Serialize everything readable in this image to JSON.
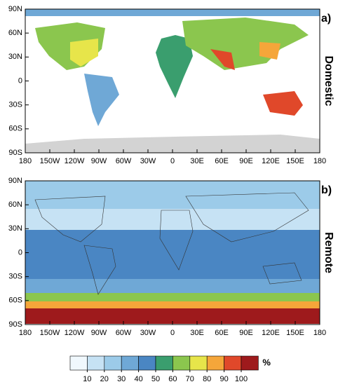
{
  "panels": [
    {
      "label": "a)",
      "title": "Domestic"
    },
    {
      "label": "b)",
      "title": "Remote"
    }
  ],
  "map": {
    "xlim": [
      -180,
      180
    ],
    "ylim": [
      -90,
      90
    ],
    "xticks": [
      {
        "value": -180,
        "label": "180"
      },
      {
        "value": -150,
        "label": "150W"
      },
      {
        "value": -120,
        "label": "120W"
      },
      {
        "value": -90,
        "label": "90W"
      },
      {
        "value": -60,
        "label": "60W"
      },
      {
        "value": -30,
        "label": "30W"
      },
      0,
      {
        "value": 30,
        "label": "30E"
      },
      {
        "value": 60,
        "label": "60E"
      },
      {
        "value": 90,
        "label": "90E"
      },
      {
        "value": 120,
        "label": "120E"
      },
      {
        "value": 150,
        "label": "150E"
      },
      {
        "value": 180,
        "label": "180"
      }
    ],
    "yticks": [
      {
        "value": 90,
        "label": "90N"
      },
      {
        "value": 60,
        "label": "60N"
      },
      {
        "value": 30,
        "label": "30N"
      },
      0,
      {
        "value": -30,
        "label": "30S"
      },
      {
        "value": -60,
        "label": "60S"
      },
      {
        "value": -90,
        "label": "90S"
      }
    ]
  },
  "colorbar": {
    "unit": "%",
    "ticks": [
      10,
      20,
      30,
      40,
      50,
      60,
      70,
      80,
      90,
      100
    ],
    "colors": [
      "#f0f8fd",
      "#c6e2f4",
      "#9ccbe9",
      "#6fa8d6",
      "#4a86c3",
      "#3a9e6e",
      "#8bc64e",
      "#e7e54a",
      "#f5a63a",
      "#e0482a",
      "#9e1a1c"
    ]
  }
}
